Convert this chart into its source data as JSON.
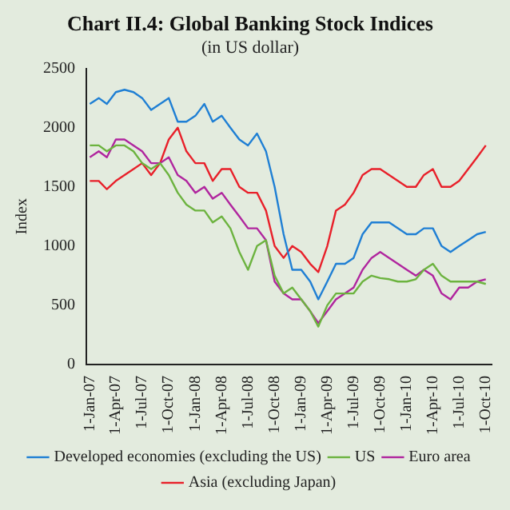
{
  "chart_data": {
    "type": "line",
    "title": "Chart II.4: Global Banking Stock Indices",
    "subtitle": "(in US dollar)",
    "ylabel": "Index",
    "x": [
      "2007-01",
      "2007-02",
      "2007-03",
      "2007-04",
      "2007-05",
      "2007-06",
      "2007-07",
      "2007-08",
      "2007-09",
      "2007-10",
      "2007-11",
      "2007-12",
      "2008-01",
      "2008-02",
      "2008-03",
      "2008-04",
      "2008-05",
      "2008-06",
      "2008-07",
      "2008-08",
      "2008-09",
      "2008-10",
      "2008-11",
      "2008-12",
      "2009-01",
      "2009-02",
      "2009-03",
      "2009-04",
      "2009-05",
      "2009-06",
      "2009-07",
      "2009-08",
      "2009-09",
      "2009-10",
      "2009-11",
      "2009-12",
      "2010-01",
      "2010-02",
      "2010-03",
      "2010-04",
      "2010-05",
      "2010-06",
      "2010-07",
      "2010-08",
      "2010-09",
      "2010-10"
    ],
    "series": [
      {
        "name": "Developed economies (excluding the US)",
        "color": "#1f7fd4",
        "values": [
          2200,
          2250,
          2200,
          2300,
          2320,
          2300,
          2250,
          2150,
          2200,
          2250,
          2050,
          2050,
          2100,
          2200,
          2050,
          2100,
          2000,
          1900,
          1850,
          1950,
          1800,
          1500,
          1100,
          800,
          800,
          700,
          550,
          700,
          850,
          850,
          900,
          1100,
          1200,
          1200,
          1200,
          1150,
          1100,
          1100,
          1150,
          1150,
          1000,
          950,
          1000,
          1050,
          1100,
          1120
        ]
      },
      {
        "name": "US",
        "color": "#6cb33f",
        "values": [
          1850,
          1850,
          1800,
          1850,
          1850,
          1800,
          1700,
          1650,
          1700,
          1600,
          1450,
          1350,
          1300,
          1300,
          1200,
          1250,
          1150,
          950,
          800,
          1000,
          1050,
          750,
          600,
          650,
          550,
          450,
          320,
          500,
          600,
          600,
          600,
          700,
          750,
          730,
          720,
          700,
          700,
          720,
          800,
          850,
          750,
          700,
          700,
          700,
          700,
          680
        ]
      },
      {
        "name": "Euro area",
        "color": "#b0259e",
        "values": [
          1750,
          1800,
          1750,
          1900,
          1900,
          1850,
          1800,
          1700,
          1700,
          1750,
          1600,
          1550,
          1450,
          1500,
          1400,
          1450,
          1350,
          1250,
          1150,
          1150,
          1050,
          700,
          600,
          550,
          550,
          450,
          350,
          450,
          550,
          600,
          650,
          800,
          900,
          950,
          900,
          850,
          800,
          750,
          800,
          750,
          600,
          550,
          650,
          650,
          700,
          720
        ]
      },
      {
        "name": "Asia (excluding Japan)",
        "color": "#e8202a",
        "values": [
          1550,
          1550,
          1480,
          1550,
          1600,
          1650,
          1700,
          1600,
          1700,
          1900,
          2000,
          1800,
          1700,
          1700,
          1550,
          1650,
          1650,
          1500,
          1450,
          1450,
          1300,
          1000,
          900,
          1000,
          950,
          850,
          780,
          1000,
          1300,
          1350,
          1450,
          1600,
          1650,
          1650,
          1600,
          1550,
          1500,
          1500,
          1600,
          1650,
          1500,
          1500,
          1550,
          1650,
          1750,
          1850
        ]
      }
    ],
    "xlim": [
      "2006-12-20",
      "2010-10-20"
    ],
    "xticks": [
      {
        "value": "2007-01-01",
        "label": "1-Jan-07"
      },
      {
        "value": "2007-04-01",
        "label": "1-Apr-07"
      },
      {
        "value": "2007-07-01",
        "label": "1-Jul-07"
      },
      {
        "value": "2007-10-01",
        "label": "1-Oct-07"
      },
      {
        "value": "2008-01-01",
        "label": "1-Jan-08"
      },
      {
        "value": "2008-04-01",
        "label": "1-Apr-08"
      },
      {
        "value": "2008-07-01",
        "label": "1-Jul-08"
      },
      {
        "value": "2008-10-01",
        "label": "1-Oct-08"
      },
      {
        "value": "2009-01-01",
        "label": "1-Jan-09"
      },
      {
        "value": "2009-04-01",
        "label": "1-Apr-09"
      },
      {
        "value": "2009-07-01",
        "label": "1-Jul-09"
      },
      {
        "value": "2009-10-01",
        "label": "1-Oct-09"
      },
      {
        "value": "2010-01-01",
        "label": "1-Jan-10"
      },
      {
        "value": "2010-04-01",
        "label": "1-Apr-10"
      },
      {
        "value": "2010-07-01",
        "label": "1-Jul-10"
      },
      {
        "value": "2010-10-01",
        "label": "1-Oct-10"
      }
    ],
    "ylim": [
      0,
      2500
    ],
    "yticks": [
      0,
      500,
      1000,
      1500,
      2000,
      2500
    ],
    "grid": false,
    "legend": "bottom",
    "marker": "none",
    "line_style": "solid"
  }
}
